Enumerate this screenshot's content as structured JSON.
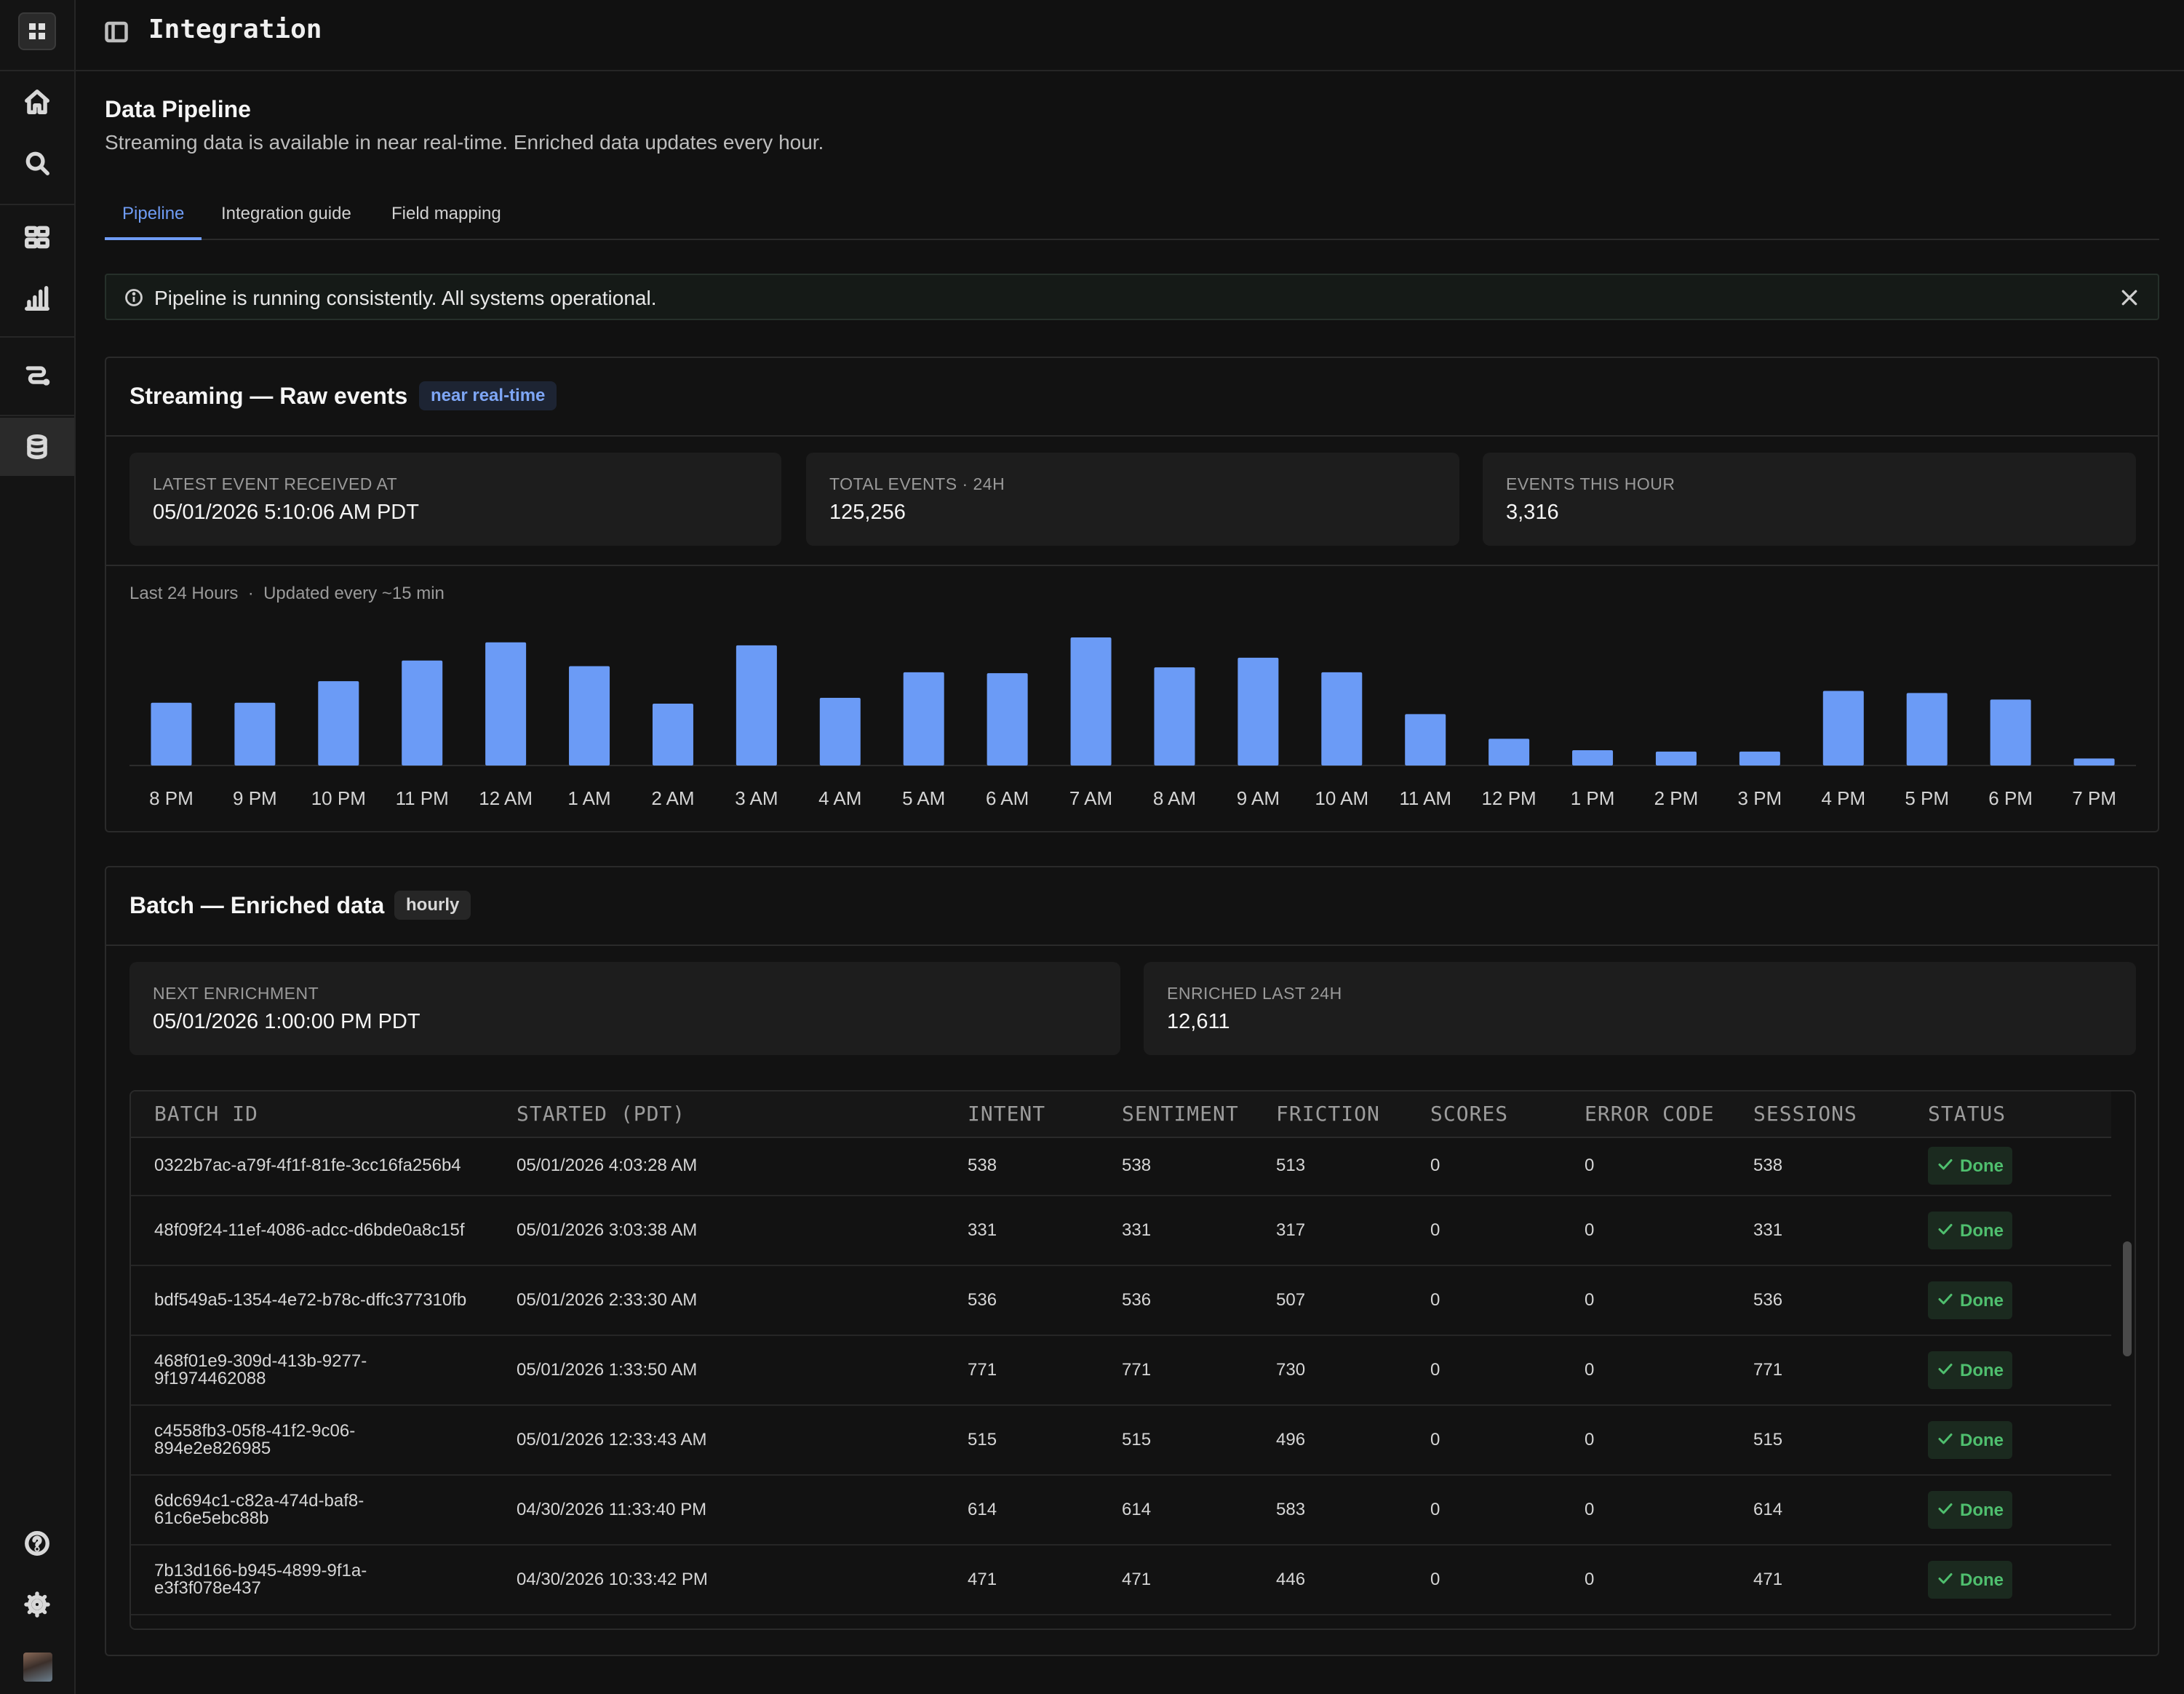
{
  "header": {
    "title": "Integration"
  },
  "page": {
    "title": "Data Pipeline",
    "subtitle": "Streaming data is available in near real-time. Enriched data updates every hour."
  },
  "tabs": [
    {
      "label": "Pipeline",
      "active": true
    },
    {
      "label": "Integration guide",
      "active": false
    },
    {
      "label": "Field mapping",
      "active": false
    }
  ],
  "banner": {
    "message": "Pipeline is running consistently. All systems operational."
  },
  "streaming": {
    "title": "Streaming — Raw events",
    "badge": "near real-time",
    "stats": [
      {
        "label": "LATEST EVENT RECEIVED AT",
        "value": "05/01/2026 5:10:06 AM PDT"
      },
      {
        "label": "TOTAL EVENTS · 24H",
        "value": "125,256"
      },
      {
        "label": "EVENTS THIS HOUR",
        "value": "3,316"
      }
    ],
    "chart_note": "Last 24 Hours  ·  Updated every ~15 min"
  },
  "chart_data": {
    "type": "bar",
    "categories": [
      "8 PM",
      "9 PM",
      "10 PM",
      "11 PM",
      "12 AM",
      "1 AM",
      "2 AM",
      "3 AM",
      "4 AM",
      "5 AM",
      "6 AM",
      "7 AM",
      "8 AM",
      "9 AM",
      "10 AM",
      "11 AM",
      "12 PM",
      "1 PM",
      "2 PM",
      "3 PM",
      "4 PM",
      "5 PM",
      "6 PM",
      "7 PM"
    ],
    "values": [
      5050,
      5050,
      6780,
      8440,
      9900,
      7990,
      4970,
      9660,
      5440,
      7500,
      7420,
      10300,
      7890,
      8670,
      7500,
      4130,
      2150,
      1230,
      1120,
      1120,
      6000,
      5830,
      5300,
      560
    ],
    "ylim": [
      0,
      11000
    ],
    "grid": false,
    "color": "#6b9bf6"
  },
  "batch": {
    "title": "Batch — Enriched data",
    "badge": "hourly",
    "stats": [
      {
        "label": "NEXT ENRICHMENT",
        "value": "05/01/2026 1:00:00 PM PDT"
      },
      {
        "label": "ENRICHED LAST 24H",
        "value": "12,611"
      }
    ],
    "columns": [
      "BATCH ID",
      "STARTED (PDT)",
      "INTENT",
      "SENTIMENT",
      "FRICTION",
      "SCORES",
      "ERROR CODE",
      "SESSIONS",
      "STATUS"
    ],
    "rows": [
      {
        "id": "0322b7ac-a79f-4f1f-81fe-3cc16fa256b4",
        "id2": "",
        "started": "05/01/2026 4:03:28 AM",
        "intent": "538",
        "sentiment": "538",
        "friction": "513",
        "scores": "0",
        "error": "0",
        "sessions": "538",
        "status": "Done"
      },
      {
        "id": "48f09f24-11ef-4086-adcc-d6bde0a8c15f",
        "id2": "",
        "started": "05/01/2026 3:03:38 AM",
        "intent": "331",
        "sentiment": "331",
        "friction": "317",
        "scores": "0",
        "error": "0",
        "sessions": "331",
        "status": "Done"
      },
      {
        "id": "bdf549a5-1354-4e72-b78c-dffc377310fb",
        "id2": "",
        "started": "05/01/2026 2:33:30 AM",
        "intent": "536",
        "sentiment": "536",
        "friction": "507",
        "scores": "0",
        "error": "0",
        "sessions": "536",
        "status": "Done"
      },
      {
        "id": "468f01e9-309d-413b-9277-",
        "id2": "9f1974462088",
        "started": "05/01/2026 1:33:50 AM",
        "intent": "771",
        "sentiment": "771",
        "friction": "730",
        "scores": "0",
        "error": "0",
        "sessions": "771",
        "status": "Done"
      },
      {
        "id": "c4558fb3-05f8-41f2-9c06-",
        "id2": "894e2e826985",
        "started": "05/01/2026 12:33:43 AM",
        "intent": "515",
        "sentiment": "515",
        "friction": "496",
        "scores": "0",
        "error": "0",
        "sessions": "515",
        "status": "Done"
      },
      {
        "id": "6dc694c1-c82a-474d-baf8-",
        "id2": "61c6e5ebc88b",
        "started": "04/30/2026 11:33:40 PM",
        "intent": "614",
        "sentiment": "614",
        "friction": "583",
        "scores": "0",
        "error": "0",
        "sessions": "614",
        "status": "Done"
      },
      {
        "id": "7b13d166-b945-4899-9f1a-",
        "id2": "e3f3f078e437",
        "started": "04/30/2026 10:33:42 PM",
        "intent": "471",
        "sentiment": "471",
        "friction": "446",
        "scores": "0",
        "error": "0",
        "sessions": "471",
        "status": "Done"
      }
    ]
  }
}
